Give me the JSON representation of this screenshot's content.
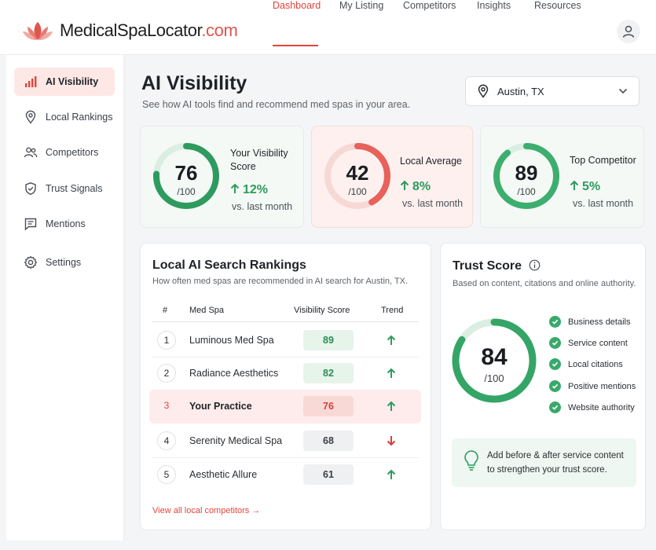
{
  "brand": {
    "name_main": "MedicalSpaLocator",
    "name_suffix": ".com",
    "accent": "#e0564e"
  },
  "nav": {
    "items": [
      "Dashboard",
      "My Listing",
      "Competitors",
      "Insights",
      "Resources"
    ],
    "active": "Dashboard"
  },
  "sidebar": {
    "items": [
      {
        "label": "AI Visibility",
        "icon": "bar-chart-icon"
      },
      {
        "label": "Local Rankings",
        "icon": "map-pin-icon"
      },
      {
        "label": "Competitors",
        "icon": "users-icon"
      },
      {
        "label": "Trust Signals",
        "icon": "shield-check-icon"
      },
      {
        "label": "Mentions",
        "icon": "message-icon"
      },
      {
        "label": "Settings",
        "icon": "gear-icon"
      }
    ]
  },
  "page": {
    "title": "AI Visibility",
    "subtitle": "See how AI tools find and recommend med spas in your area."
  },
  "location": {
    "value": "Austin, TX"
  },
  "stats": [
    {
      "value": 76,
      "max": "/100",
      "label_line1": "Your Visibility",
      "label_line2": "Score",
      "change": "12%",
      "vs": "vs. last month",
      "color": "#2e9b5e"
    },
    {
      "value": 42,
      "max": "/100",
      "label_line1": "Local Average",
      "label_line2": "",
      "change": "8%",
      "vs": "vs. last month",
      "color": "#e8615a"
    },
    {
      "value": 89,
      "max": "/100",
      "label_line1": "Top Competitor",
      "label_line2": "",
      "change": "5%",
      "vs": "vs. last month",
      "color": "#3cae6e"
    }
  ],
  "rankings": {
    "title": "Local AI Search Rankings",
    "subtitle": "How often med spas are recommended in AI search for Austin, TX.",
    "columns": [
      "#",
      "Med Spa",
      "Visibility Score",
      "Trend"
    ],
    "rows": [
      {
        "rank": "1",
        "name": "Luminous Med Spa",
        "score": "89",
        "trend": "up",
        "tone": "green"
      },
      {
        "rank": "2",
        "name": "Radiance Aesthetics",
        "score": "82",
        "trend": "up",
        "tone": "green"
      },
      {
        "rank": "3",
        "name": "Your Practice",
        "score": "76",
        "trend": "up",
        "tone": "red"
      },
      {
        "rank": "4",
        "name": "Serenity Medical Spa",
        "score": "68",
        "trend": "down",
        "tone": "gray"
      },
      {
        "rank": "5",
        "name": "Aesthetic Allure",
        "score": "61",
        "trend": "up",
        "tone": "gray"
      }
    ],
    "link": "View all local competitors →"
  },
  "trust": {
    "title": "Trust Score",
    "subtitle": "Based on content, citations and online authority.",
    "value": 84,
    "max": "/100",
    "checks": [
      "Business details",
      "Service content",
      "Local citations",
      "Positive mentions",
      "Website authority"
    ],
    "tip": "Add before & after service content to strengthen your trust score."
  }
}
